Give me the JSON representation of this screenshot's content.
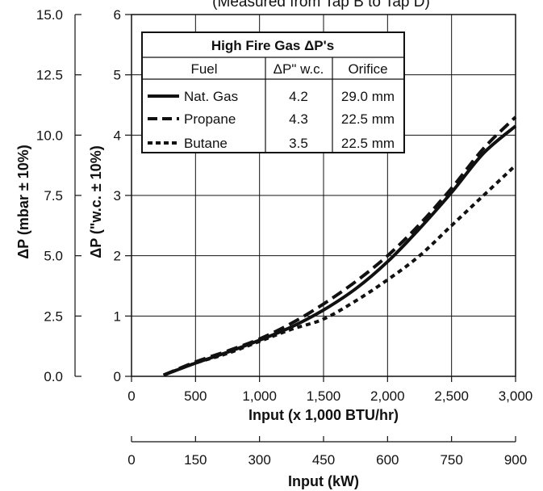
{
  "chart_data": {
    "type": "line",
    "subtitle": "(Measured from Tap B to Tap D)",
    "xlabel": "Input (x 1,000 BTU/hr)",
    "xlabel_secondary": "Input (kW)",
    "ylabel_left": "ΔP (mbar ± 10%)",
    "ylabel_right": "ΔP (\"w.c. ± 10%)",
    "xlim": [
      0,
      3000
    ],
    "ylim": [
      0,
      6
    ],
    "x_ticks": [
      0,
      500,
      1000,
      1500,
      2000,
      2500,
      3000
    ],
    "x_tick_labels": [
      "0",
      "500",
      "1,000",
      "1,500",
      "2,000",
      "2,500",
      "3,000"
    ],
    "y_ticks": [
      0,
      1,
      2,
      3,
      4,
      5,
      6
    ],
    "y_tick_labels": [
      "0",
      "1",
      "2",
      "3",
      "4",
      "5",
      "6"
    ],
    "y2_ticks": [
      0,
      2.5,
      5,
      7.5,
      10,
      12.5,
      15
    ],
    "y2_tick_labels": [
      "0.0",
      "2.5",
      "5.0",
      "7.5",
      "10.0",
      "12.5",
      "15.0"
    ],
    "kw_ticks": [
      0,
      150,
      300,
      450,
      600,
      750,
      900
    ],
    "kw_tick_labels": [
      "0",
      "150",
      "300",
      "450",
      "600",
      "750",
      "900"
    ],
    "grid": true,
    "legend_table": {
      "title": "High Fire Gas ΔP's",
      "headers": [
        "Fuel",
        "ΔP\" w.c.",
        "Orifice"
      ],
      "rows": [
        {
          "fuel": "Nat. Gas",
          "dp": "4.2",
          "orifice": "29.0 mm"
        },
        {
          "fuel": "Propane",
          "dp": "4.3",
          "orifice": "22.5 mm"
        },
        {
          "fuel": "Butane",
          "dp": "3.5",
          "orifice": "22.5 mm"
        }
      ]
    },
    "series": [
      {
        "name": "Nat. Gas",
        "dash": "solid",
        "x": [
          250,
          500,
          750,
          1000,
          1250,
          1500,
          1750,
          2000,
          2250,
          2500,
          2750,
          3000
        ],
        "y": [
          0.02,
          0.22,
          0.4,
          0.6,
          0.82,
          1.1,
          1.45,
          1.9,
          2.45,
          3.05,
          3.7,
          4.15
        ]
      },
      {
        "name": "Propane",
        "dash": "dashed",
        "x": [
          250,
          500,
          750,
          1000,
          1250,
          1500,
          1750,
          2000,
          2250,
          2500,
          2750,
          3000
        ],
        "y": [
          0.02,
          0.24,
          0.42,
          0.62,
          0.88,
          1.2,
          1.57,
          2.0,
          2.52,
          3.12,
          3.78,
          4.3
        ]
      },
      {
        "name": "Butane",
        "dash": "dotted",
        "x": [
          250,
          500,
          750,
          1000,
          1250,
          1500,
          1750,
          2000,
          2250,
          2500,
          2750,
          3000
        ],
        "y": [
          0.02,
          0.22,
          0.38,
          0.58,
          0.78,
          0.95,
          1.25,
          1.6,
          2.0,
          2.5,
          3.0,
          3.5
        ]
      }
    ]
  }
}
